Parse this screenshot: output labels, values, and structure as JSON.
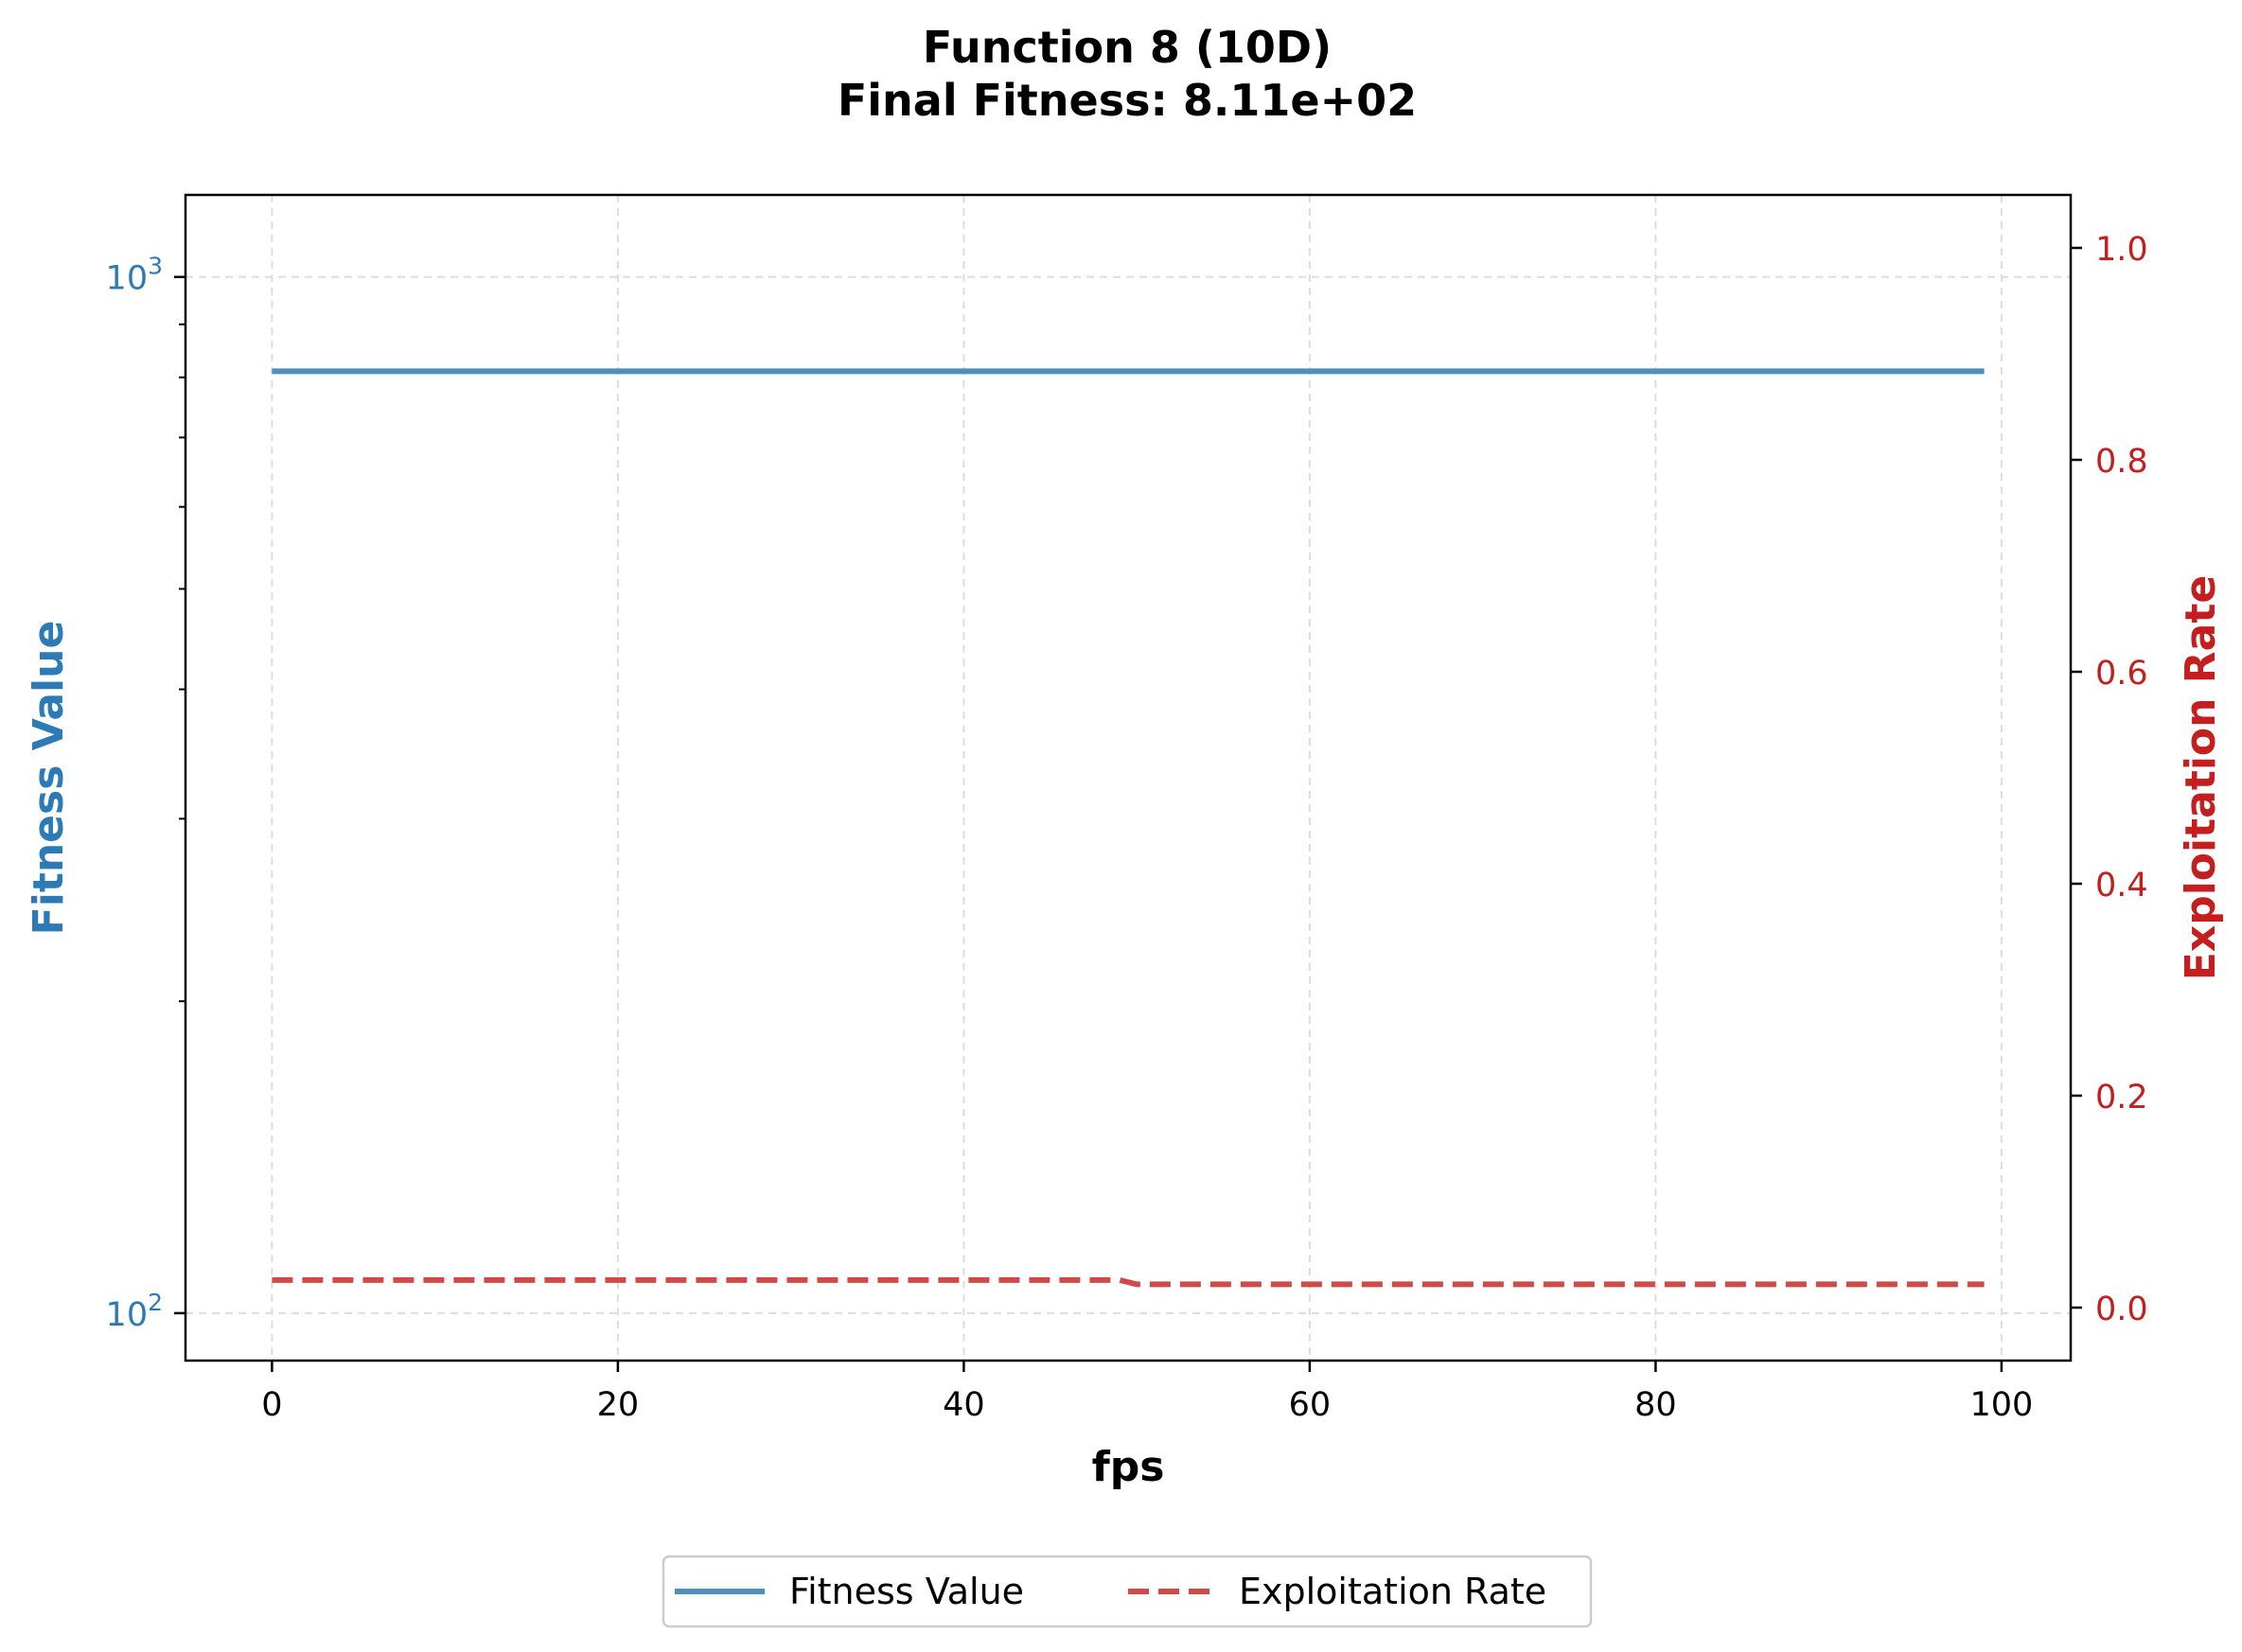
{
  "chart_data": {
    "type": "line",
    "title": "Function 8 (10D)",
    "subtitle": "Final Fitness: 8.11e+02",
    "xlabel": "fps",
    "ylabel_left": "Fitness Value",
    "ylabel_right": "Exploitation Rate",
    "xlim": [
      -5,
      104
    ],
    "x_ticks": [
      0,
      20,
      40,
      60,
      80,
      100
    ],
    "x_tick_labels": [
      "0",
      "20",
      "40",
      "60",
      "80",
      "100"
    ],
    "y_left_scale": "log",
    "y_left_lim": [
      90,
      1200
    ],
    "y_left_major_ticks": [
      100,
      1000
    ],
    "y_left_tick_labels": [
      {
        "base": "10",
        "exp": "2"
      },
      {
        "base": "10",
        "exp": "3"
      }
    ],
    "y_right_lim": [
      -0.05,
      1.05
    ],
    "y_right_ticks": [
      0.0,
      0.2,
      0.4,
      0.6,
      0.8,
      1.0
    ],
    "y_right_tick_labels": [
      "0.0",
      "0.2",
      "0.4",
      "0.6",
      "0.8",
      "1.0"
    ],
    "grid": true,
    "legend_position": "bottom-center",
    "series": [
      {
        "name": "Fitness Value",
        "axis": "left",
        "style": "solid",
        "color": "#4f8fc0",
        "x": [
          0,
          99
        ],
        "y": [
          811,
          811
        ]
      },
      {
        "name": "Exploitation Rate",
        "axis": "right",
        "style": "dashed",
        "color": "#d04a4a",
        "x": [
          0,
          48,
          49,
          50,
          51,
          99
        ],
        "y": [
          0.026,
          0.026,
          0.026,
          0.022,
          0.022,
          0.022
        ]
      }
    ],
    "colors": {
      "left_axis": "#2c7bb6",
      "right_axis": "#c41e1e"
    }
  }
}
